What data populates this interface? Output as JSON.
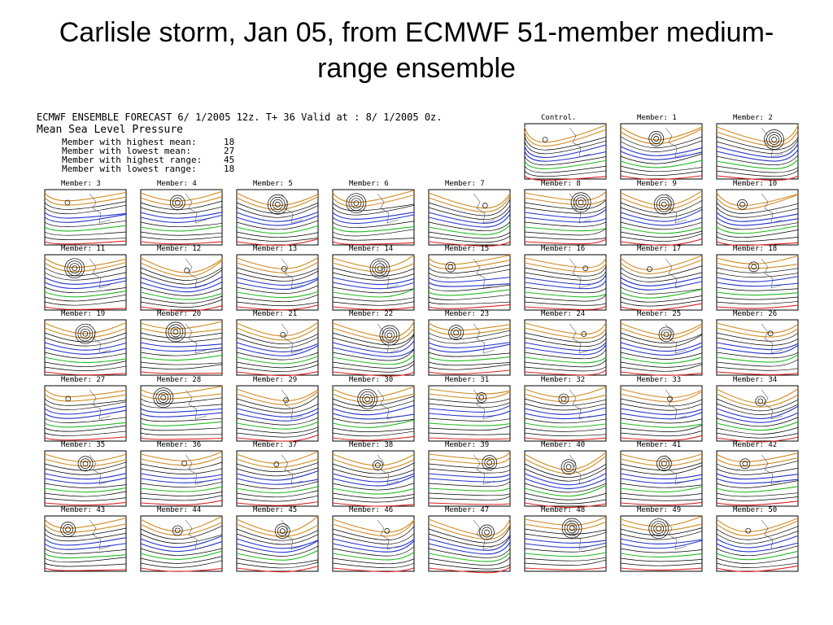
{
  "title": "Carlisle storm, Jan 05, from ECMWF 51-member medium-range ensemble",
  "header": {
    "line1": "ECMWF ENSEMBLE FORECAST  6/ 1/2005 12z. T+ 36 Valid at :  8/ 1/2005  0z.",
    "line2": "Mean Sea Level Pressure",
    "stats": [
      {
        "label": "Member with highest mean:",
        "value": 18
      },
      {
        "label": "Member with lowest mean:",
        "value": 27
      },
      {
        "label": "Member with highest range:",
        "value": 45
      },
      {
        "label": "Member with lowest range:",
        "value": 18
      }
    ]
  },
  "panels": [
    "Control.",
    "Member:  1",
    "Member:  2",
    "Member:  3",
    "Member:  4",
    "Member:  5",
    "Member:  6",
    "Member:  7",
    "Member:  8",
    "Member:  9",
    "Member: 10",
    "Member: 11",
    "Member: 12",
    "Member: 13",
    "Member: 14",
    "Member: 15",
    "Member: 16",
    "Member: 17",
    "Member: 18",
    "Member: 19",
    "Member: 20",
    "Member: 21",
    "Member: 22",
    "Member: 23",
    "Member: 24",
    "Member: 25",
    "Member: 26",
    "Member: 27",
    "Member: 28",
    "Member: 29",
    "Member: 30",
    "Member: 31",
    "Member: 32",
    "Member: 33",
    "Member: 34",
    "Member: 35",
    "Member: 36",
    "Member: 37",
    "Member: 38",
    "Member: 39",
    "Member: 40",
    "Member: 41",
    "Member: 42",
    "Member: 43",
    "Member: 44",
    "Member: 45",
    "Member: 46",
    "Member: 47",
    "Member: 48",
    "Member: 49",
    "Member: 50"
  ]
}
